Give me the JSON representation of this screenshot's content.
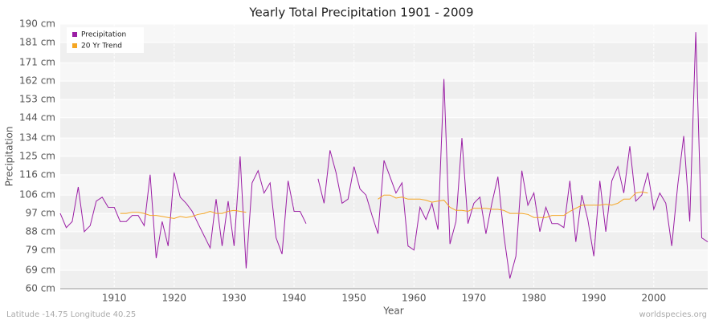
{
  "chart_data": {
    "type": "line",
    "title": "Yearly Total Precipitation 1901 - 2009",
    "x_label": "Year",
    "y_label": "Precipitation",
    "footer_left": "Latitude -14.75 Longitude 40.25",
    "footer_right": "worldspecies.org",
    "legend_position": "upper left",
    "grid": true,
    "xlim": [
      1901,
      2009
    ],
    "xticks": [
      1910,
      1920,
      1930,
      1940,
      1950,
      1960,
      1970,
      1980,
      1990,
      2000
    ],
    "ylim": [
      60,
      190
    ],
    "yticks": [
      {
        "value": 60,
        "label": "60 cm"
      },
      {
        "value": 69,
        "label": "69 cm"
      },
      {
        "value": 79,
        "label": "79 cm"
      },
      {
        "value": 88,
        "label": "88 cm"
      },
      {
        "value": 97,
        "label": "97 cm"
      },
      {
        "value": 106,
        "label": "106 cm"
      },
      {
        "value": 116,
        "label": "116 cm"
      },
      {
        "value": 125,
        "label": "125 cm"
      },
      {
        "value": 134,
        "label": "134 cm"
      },
      {
        "value": 144,
        "label": "144 cm"
      },
      {
        "value": 153,
        "label": "153 cm"
      },
      {
        "value": 162,
        "label": "162 cm"
      },
      {
        "value": 171,
        "label": "171 cm"
      },
      {
        "value": 181,
        "label": "181 cm"
      },
      {
        "value": 190,
        "label": "190 cm"
      }
    ],
    "x": [
      1901,
      1902,
      1903,
      1904,
      1905,
      1906,
      1907,
      1908,
      1909,
      1910,
      1911,
      1912,
      1913,
      1914,
      1915,
      1916,
      1917,
      1918,
      1919,
      1920,
      1921,
      1922,
      1923,
      1924,
      1925,
      1926,
      1927,
      1928,
      1929,
      1930,
      1931,
      1932,
      1933,
      1934,
      1935,
      1936,
      1937,
      1938,
      1939,
      1940,
      1941,
      1942,
      1943,
      1944,
      1945,
      1946,
      1947,
      1948,
      1949,
      1950,
      1951,
      1952,
      1953,
      1954,
      1955,
      1956,
      1957,
      1958,
      1959,
      1960,
      1961,
      1962,
      1963,
      1964,
      1965,
      1966,
      1967,
      1968,
      1969,
      1970,
      1971,
      1972,
      1973,
      1974,
      1975,
      1976,
      1977,
      1978,
      1979,
      1980,
      1981,
      1982,
      1983,
      1984,
      1985,
      1986,
      1987,
      1988,
      1989,
      1990,
      1991,
      1992,
      1993,
      1994,
      1995,
      1996,
      1997,
      1998,
      1999,
      2000,
      2001,
      2002,
      2003,
      2004,
      2005,
      2006,
      2007,
      2008,
      2009
    ],
    "series": [
      {
        "name": "Precipitation",
        "color": "#9b1fa5",
        "values": [
          97,
          90,
          93,
          110,
          88,
          91,
          103,
          105,
          100,
          100,
          93,
          93,
          96,
          96,
          91,
          116,
          75,
          93,
          81,
          117,
          105,
          102,
          98,
          92,
          86,
          80,
          104,
          81,
          103,
          81,
          125,
          70,
          112,
          118,
          107,
          112,
          85,
          77,
          113,
          98,
          98,
          92,
          null,
          114,
          102,
          128,
          117,
          102,
          104,
          120,
          109,
          106,
          96,
          87,
          123,
          115,
          107,
          112,
          81,
          79,
          100,
          94,
          102,
          89,
          163,
          82,
          93,
          134,
          92,
          102,
          105,
          87,
          102,
          115,
          86,
          65,
          76,
          118,
          101,
          107,
          88,
          100,
          92,
          92,
          90,
          113,
          83,
          106,
          94,
          76,
          113,
          88,
          113,
          120,
          107,
          130,
          103,
          106,
          117,
          99,
          107,
          102,
          81,
          111,
          135,
          93,
          186,
          85,
          83
        ]
      },
      {
        "name": "20 Yr Trend",
        "color": "#f5a623",
        "values": [
          null,
          null,
          null,
          null,
          null,
          null,
          null,
          null,
          null,
          null,
          97,
          97,
          97.5,
          97.5,
          97,
          96,
          96,
          95.5,
          95,
          94.5,
          95.5,
          95,
          95.5,
          96.5,
          97,
          98,
          97,
          97,
          98,
          98.5,
          98,
          97.5,
          null,
          null,
          null,
          null,
          null,
          null,
          null,
          null,
          null,
          null,
          null,
          null,
          null,
          null,
          null,
          null,
          null,
          null,
          null,
          null,
          null,
          104,
          106,
          106,
          104.5,
          105,
          104,
          104,
          104,
          103.5,
          102.5,
          103,
          103.5,
          100,
          98.5,
          98.5,
          98,
          99.5,
          99.5,
          99.5,
          99,
          99,
          98.5,
          97,
          97,
          97,
          96.5,
          95,
          95,
          95,
          96,
          96,
          96,
          98,
          99.5,
          101,
          101,
          101,
          101,
          101.5,
          101,
          102,
          104,
          104,
          107,
          107.5,
          107,
          null,
          null,
          null,
          null,
          null,
          null,
          null,
          null,
          null,
          null
        ]
      }
    ]
  }
}
